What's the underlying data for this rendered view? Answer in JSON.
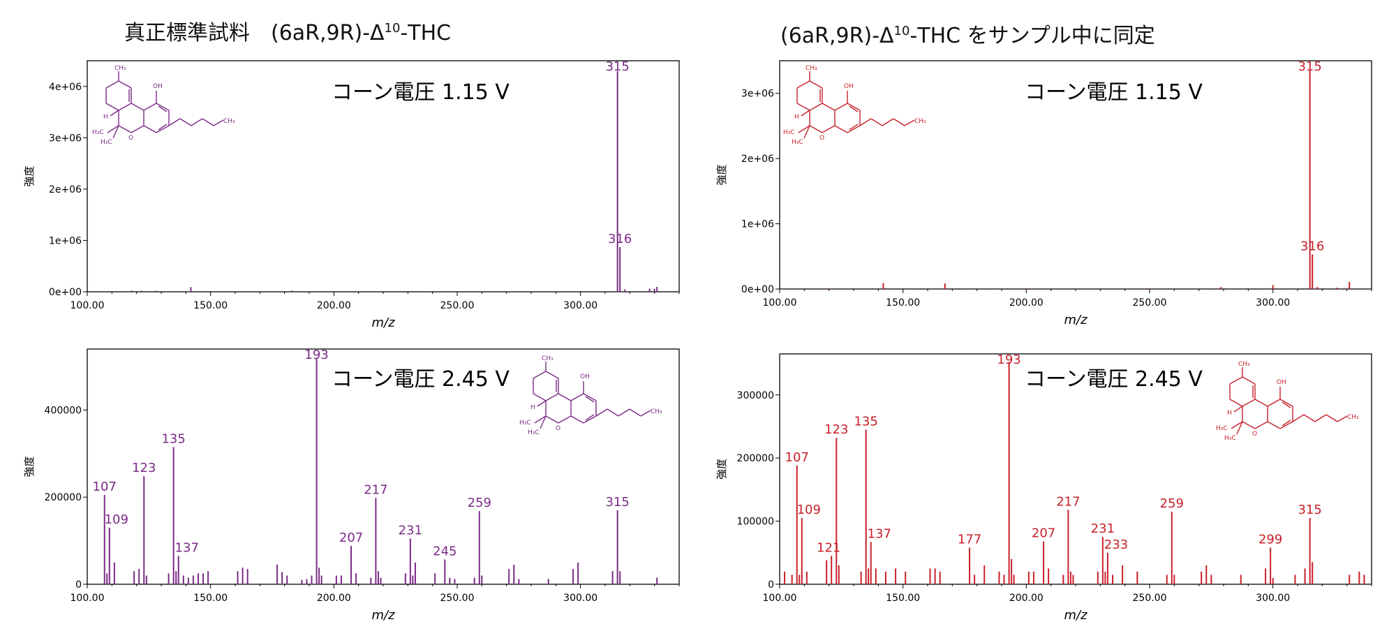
{
  "titles": {
    "left": {
      "pre": "真正標準試料　(6aR,9R)-Δ",
      "sup": "10",
      "post": "-THC"
    },
    "right": {
      "pre": "(6aR,9R)-Δ",
      "sup": "10",
      "post": "-THC をサンプル中に同定"
    }
  },
  "colors": {
    "purple": "#7a2a86",
    "red": "#c8202a",
    "axis": "#000000"
  },
  "chart_data": [
    {
      "id": "left-top",
      "type": "bar",
      "panel": "standard",
      "color": "#7a2a86",
      "annotation": "コーン電圧 1.15 V",
      "xlabel": "m/z",
      "ylabel": "強度",
      "xlim": [
        100,
        340
      ],
      "ylim": [
        0,
        4500000
      ],
      "xticks": [
        100,
        150,
        200,
        250,
        300
      ],
      "xtick_labels": [
        "100.00",
        "150.00",
        "200.00",
        "250.00",
        "300.00"
      ],
      "yticks": [
        0,
        1000000,
        2000000,
        3000000,
        4000000
      ],
      "ytick_labels": [
        "0e+00",
        "1e+06",
        "2e+06",
        "3e+06",
        "4e+06"
      ],
      "peaks": [
        [
          315,
          4300000
        ],
        [
          316,
          870000
        ],
        [
          142,
          90000
        ],
        [
          118,
          25000
        ],
        [
          122,
          20000
        ],
        [
          128,
          20000
        ],
        [
          183,
          25000
        ],
        [
          318,
          45000
        ],
        [
          328,
          60000
        ],
        [
          330,
          55000
        ],
        [
          331,
          95000
        ],
        [
          256,
          12000
        ],
        [
          270,
          12000
        ],
        [
          296,
          10000
        ]
      ],
      "labels": [
        {
          "mz": 315,
          "text": "315"
        },
        {
          "mz": 316,
          "text": "316"
        }
      ]
    },
    {
      "id": "left-bottom",
      "type": "bar",
      "panel": "standard",
      "color": "#7a2a86",
      "annotation": "コーン電圧 2.45 V",
      "xlabel": "m/z",
      "ylabel": "強度",
      "xlim": [
        100,
        340
      ],
      "ylim": [
        0,
        540000
      ],
      "xticks": [
        100,
        150,
        200,
        250,
        300
      ],
      "xtick_labels": [
        "100.00",
        "150.00",
        "200.00",
        "250.00",
        "300.00"
      ],
      "yticks": [
        0,
        200000,
        400000
      ],
      "ytick_labels": [
        "0",
        "200000",
        "400000"
      ],
      "peaks": [
        [
          107,
          205000
        ],
        [
          108,
          25000
        ],
        [
          109,
          130000
        ],
        [
          111,
          50000
        ],
        [
          119,
          30000
        ],
        [
          121,
          35000
        ],
        [
          123,
          248000
        ],
        [
          124,
          20000
        ],
        [
          133,
          25000
        ],
        [
          135,
          315000
        ],
        [
          136,
          30000
        ],
        [
          137,
          65000
        ],
        [
          139,
          20000
        ],
        [
          141,
          15000
        ],
        [
          143,
          20000
        ],
        [
          145,
          25000
        ],
        [
          147,
          25000
        ],
        [
          149,
          30000
        ],
        [
          161,
          30000
        ],
        [
          163,
          38000
        ],
        [
          165,
          35000
        ],
        [
          177,
          45000
        ],
        [
          179,
          28000
        ],
        [
          181,
          20000
        ],
        [
          187,
          10000
        ],
        [
          189,
          12000
        ],
        [
          191,
          20000
        ],
        [
          193,
          518000
        ],
        [
          194,
          38000
        ],
        [
          195,
          20000
        ],
        [
          201,
          20000
        ],
        [
          203,
          20000
        ],
        [
          207,
          88000
        ],
        [
          209,
          25000
        ],
        [
          215,
          15000
        ],
        [
          217,
          198000
        ],
        [
          218,
          30000
        ],
        [
          219,
          15000
        ],
        [
          229,
          25000
        ],
        [
          231,
          105000
        ],
        [
          232,
          20000
        ],
        [
          233,
          50000
        ],
        [
          241,
          25000
        ],
        [
          245,
          57000
        ],
        [
          247,
          15000
        ],
        [
          249,
          12000
        ],
        [
          257,
          15000
        ],
        [
          259,
          168000
        ],
        [
          260,
          20000
        ],
        [
          271,
          35000
        ],
        [
          273,
          45000
        ],
        [
          275,
          12000
        ],
        [
          287,
          12000
        ],
        [
          297,
          35000
        ],
        [
          299,
          50000
        ],
        [
          313,
          30000
        ],
        [
          315,
          170000
        ],
        [
          316,
          30000
        ],
        [
          331,
          15000
        ]
      ],
      "labels": [
        {
          "mz": 107,
          "text": "107"
        },
        {
          "mz": 109,
          "text": "109"
        },
        {
          "mz": 123,
          "text": "123"
        },
        {
          "mz": 135,
          "text": "135"
        },
        {
          "mz": 137,
          "text": "137"
        },
        {
          "mz": 193,
          "text": "193"
        },
        {
          "mz": 207,
          "text": "207"
        },
        {
          "mz": 217,
          "text": "217"
        },
        {
          "mz": 231,
          "text": "231"
        },
        {
          "mz": 245,
          "text": "245"
        },
        {
          "mz": 259,
          "text": "259"
        },
        {
          "mz": 315,
          "text": "315"
        }
      ]
    },
    {
      "id": "right-top",
      "type": "bar",
      "panel": "sample",
      "color": "#c8202a",
      "annotation": "コーン電圧 1.15 V",
      "xlabel": "m/z",
      "ylabel": "強度",
      "xlim": [
        100,
        340
      ],
      "ylim": [
        0,
        3500000
      ],
      "xticks": [
        100,
        150,
        200,
        250,
        300
      ],
      "xtick_labels": [
        "100.00",
        "150.00",
        "200.00",
        "250.00",
        "300.00"
      ],
      "yticks": [
        0,
        1000000,
        2000000,
        3000000
      ],
      "ytick_labels": [
        "0e+00",
        "1e+06",
        "2e+06",
        "3e+06"
      ],
      "peaks": [
        [
          315,
          3350000
        ],
        [
          316,
          530000
        ],
        [
          142,
          90000
        ],
        [
          167,
          85000
        ],
        [
          300,
          60000
        ],
        [
          279,
          30000
        ],
        [
          331,
          110000
        ],
        [
          318,
          30000
        ],
        [
          120,
          10000
        ],
        [
          200,
          10000
        ],
        [
          250,
          10000
        ],
        [
          326,
          20000
        ]
      ],
      "labels": [
        {
          "mz": 315,
          "text": "315"
        },
        {
          "mz": 316,
          "text": "316"
        }
      ]
    },
    {
      "id": "right-bottom",
      "type": "bar",
      "panel": "sample",
      "color": "#c8202a",
      "annotation": "コーン電圧 2.45 V",
      "xlabel": "m/z",
      "ylabel": "強度",
      "xlim": [
        100,
        340
      ],
      "ylim": [
        0,
        365000
      ],
      "xticks": [
        100,
        150,
        200,
        250,
        300
      ],
      "xtick_labels": [
        "100.00",
        "150.00",
        "200.00",
        "250.00",
        "300.00"
      ],
      "yticks": [
        0,
        100000,
        200000,
        300000
      ],
      "ytick_labels": [
        "0",
        "100000",
        "200000",
        "300000"
      ],
      "peaks": [
        [
          102,
          20000
        ],
        [
          105,
          15000
        ],
        [
          107,
          188000
        ],
        [
          108,
          15000
        ],
        [
          109,
          105000
        ],
        [
          111,
          20000
        ],
        [
          119,
          38000
        ],
        [
          121,
          45000
        ],
        [
          123,
          232000
        ],
        [
          124,
          30000
        ],
        [
          133,
          20000
        ],
        [
          135,
          245000
        ],
        [
          136,
          25000
        ],
        [
          137,
          67000
        ],
        [
          139,
          25000
        ],
        [
          143,
          20000
        ],
        [
          147,
          25000
        ],
        [
          151,
          20000
        ],
        [
          161,
          25000
        ],
        [
          163,
          25000
        ],
        [
          165,
          20000
        ],
        [
          177,
          58000
        ],
        [
          179,
          15000
        ],
        [
          183,
          30000
        ],
        [
          189,
          20000
        ],
        [
          191,
          15000
        ],
        [
          193,
          352000
        ],
        [
          194,
          40000
        ],
        [
          195,
          15000
        ],
        [
          201,
          20000
        ],
        [
          203,
          20000
        ],
        [
          207,
          68000
        ],
        [
          209,
          25000
        ],
        [
          215,
          15000
        ],
        [
          217,
          118000
        ],
        [
          218,
          20000
        ],
        [
          219,
          15000
        ],
        [
          229,
          20000
        ],
        [
          231,
          75000
        ],
        [
          232,
          20000
        ],
        [
          233,
          50000
        ],
        [
          235,
          15000
        ],
        [
          239,
          30000
        ],
        [
          245,
          20000
        ],
        [
          257,
          15000
        ],
        [
          259,
          115000
        ],
        [
          260,
          15000
        ],
        [
          271,
          20000
        ],
        [
          273,
          30000
        ],
        [
          275,
          15000
        ],
        [
          287,
          15000
        ],
        [
          297,
          25000
        ],
        [
          299,
          58000
        ],
        [
          300,
          10000
        ],
        [
          309,
          15000
        ],
        [
          313,
          25000
        ],
        [
          315,
          105000
        ],
        [
          316,
          35000
        ],
        [
          331,
          15000
        ],
        [
          335,
          20000
        ],
        [
          337,
          15000
        ]
      ],
      "labels": [
        {
          "mz": 107,
          "text": "107"
        },
        {
          "mz": 109,
          "text": "109"
        },
        {
          "mz": 121,
          "text": "121"
        },
        {
          "mz": 123,
          "text": "123"
        },
        {
          "mz": 135,
          "text": "135"
        },
        {
          "mz": 137,
          "text": "137"
        },
        {
          "mz": 177,
          "text": "177"
        },
        {
          "mz": 193,
          "text": "193"
        },
        {
          "mz": 207,
          "text": "207"
        },
        {
          "mz": 217,
          "text": "217"
        },
        {
          "mz": 231,
          "text": "231"
        },
        {
          "mz": 233,
          "text": "233"
        },
        {
          "mz": 259,
          "text": "259"
        },
        {
          "mz": 299,
          "text": "299"
        },
        {
          "mz": 315,
          "text": "315"
        }
      ]
    }
  ],
  "structure_labels": {
    "ch3_top": "CH₃",
    "oh": "OH",
    "h": "H",
    "h3c_a": "H₃C",
    "h3c_b": "H₃C",
    "o": "O",
    "ch3_tail": "CH₃"
  }
}
